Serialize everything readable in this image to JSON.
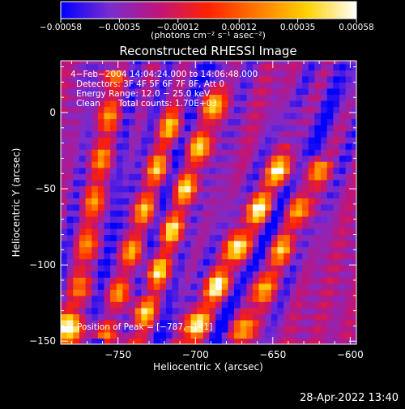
{
  "chart_data": {
    "type": "heatmap",
    "title": "Reconstructed RHESSI Image",
    "xlabel": "Heliocentric X (arcsec)",
    "ylabel": "Heliocentric Y (arcsec)",
    "xlim": [
      -787,
      -596
    ],
    "ylim": [
      -152,
      34
    ],
    "x_ticks": [
      -750,
      -700,
      -650,
      -600
    ],
    "y_ticks": [
      0,
      -50,
      -100,
      -150
    ],
    "x_tick_labels": [
      "−750",
      "−700",
      "−650",
      "−600"
    ],
    "y_tick_labels": [
      "0",
      "−50",
      "−100",
      "−150"
    ],
    "colorbar": {
      "range": [
        -0.00058,
        0.00058
      ],
      "ticks": [
        -0.00058,
        -0.00035,
        -0.00012,
        0.00012,
        0.00035,
        0.00058
      ],
      "tick_labels": [
        "−0.00058",
        "−0.00035",
        "−0.00012",
        "0.00012",
        "0.00035",
        "0.00058"
      ],
      "unit": "(photons cm⁻² s⁻¹ asec⁻²)",
      "colors": [
        "#0000ff",
        "#7a2ccf",
        "#c0147a",
        "#ff2200",
        "#ff7a00",
        "#ffd200",
        "#ffffff"
      ]
    },
    "annotations": [
      "4−Feb−2004 14:04:24.000 to 14:06:48.000",
      "Detectors: 3F 4F 5F 6F 7F 8F, Att 0",
      "Energy Range: 12.0 − 25.0 keV",
      "Clean",
      "Total counts: 1.70E+03"
    ],
    "peak_label": "Position of Peak = [−787,−141]",
    "peak": [
      -787,
      -141
    ],
    "bands": [
      {
        "x0": -779,
        "y0": -150,
        "x1": -753,
        "y1": 22,
        "amp": 0.55
      },
      {
        "x0": -758,
        "y0": -145,
        "x1": -712,
        "y1": 3,
        "amp": 0.75
      },
      {
        "x0": -740,
        "y0": -150,
        "x1": -685,
        "y1": 15,
        "amp": 0.9
      },
      {
        "x0": -705,
        "y0": -150,
        "x1": -640,
        "y1": -27,
        "amp": 1.0
      },
      {
        "x0": -670,
        "y0": -146,
        "x1": -620,
        "y1": -35,
        "amp": 0.7
      }
    ],
    "hotspot": {
      "x": -785,
      "y": -140,
      "amp": 1.0
    }
  },
  "timestamp": "28-Apr-2022 13:40"
}
